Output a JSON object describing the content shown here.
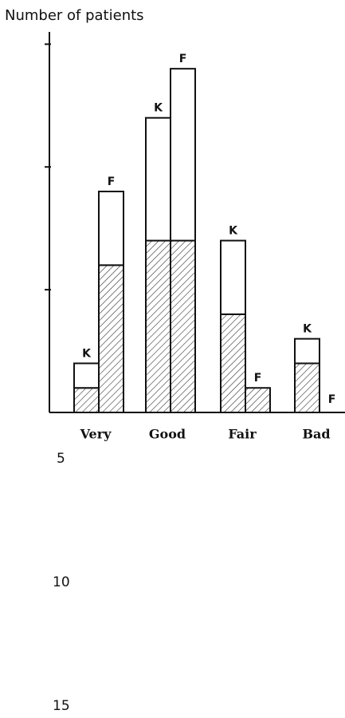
{
  "chart_data": {
    "type": "bar",
    "title": "Number of patients",
    "categories": [
      "Very",
      "Good",
      "Fair",
      "Bad"
    ],
    "series": [
      {
        "name": "K",
        "hatched": [
          1,
          7,
          4,
          2
        ],
        "open": [
          1,
          5,
          3,
          1
        ]
      },
      {
        "name": "F",
        "hatched": [
          6,
          7,
          1,
          0
        ],
        "open": [
          3,
          7,
          0,
          0
        ]
      }
    ],
    "ylim": [
      0,
      15.5
    ],
    "yticks": [
      5,
      10,
      15
    ]
  }
}
